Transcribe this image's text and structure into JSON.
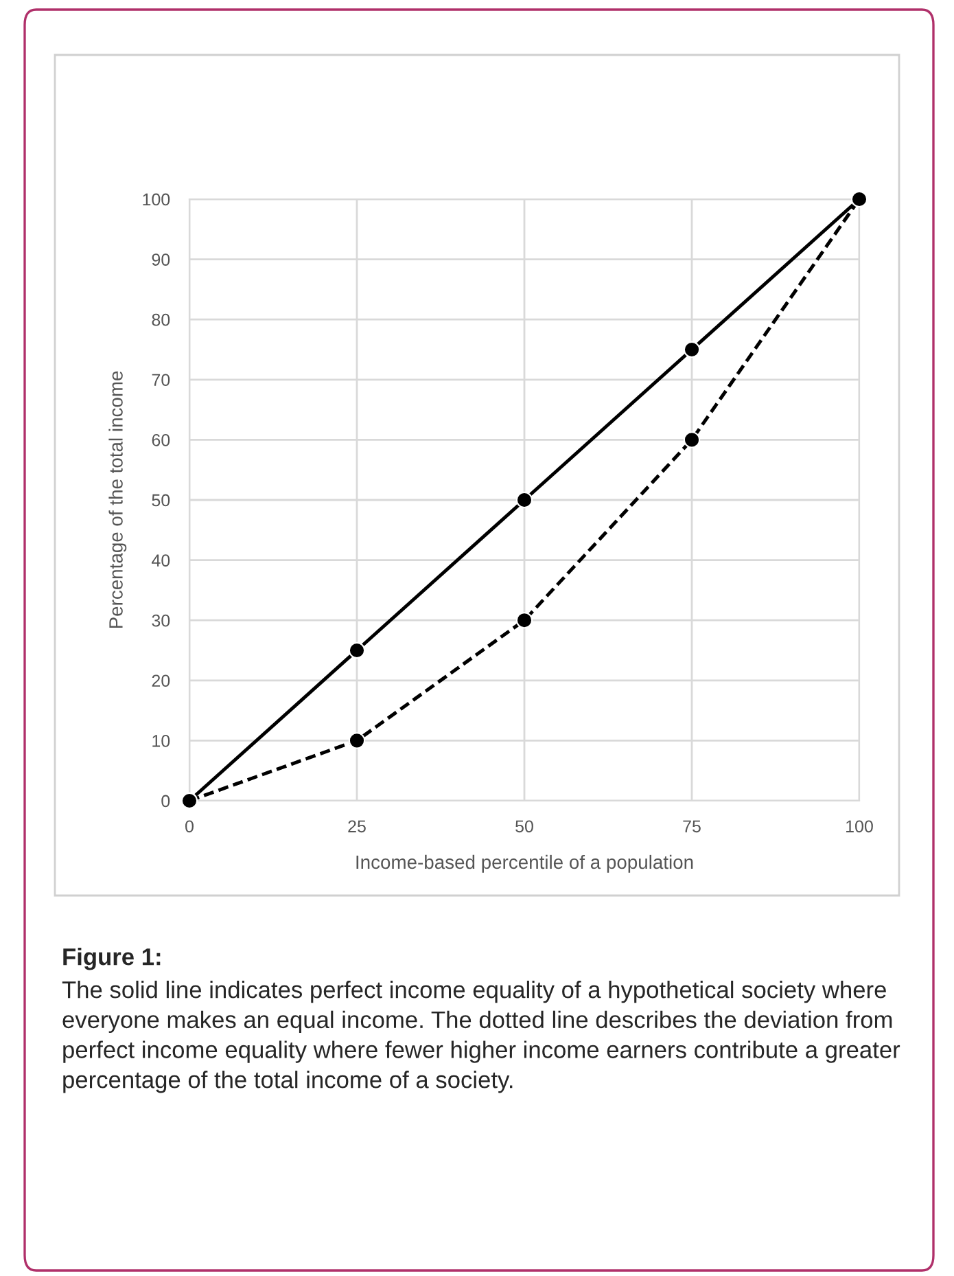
{
  "chart_data": {
    "type": "line",
    "xlabel": "Income-based percentile of a population",
    "ylabel": "Percentage of the total income",
    "x": [
      0,
      25,
      50,
      75,
      100
    ],
    "series": [
      {
        "color": "#000000",
        "values": [
          0,
          25,
          50,
          75,
          100
        ],
        "line_style": "solid"
      },
      {
        "color": "#000000",
        "values": [
          0,
          10,
          30,
          60,
          100
        ],
        "line_style": "dashed"
      }
    ],
    "xlim": [
      0,
      100
    ],
    "xticks": [
      0,
      25,
      50,
      75,
      100
    ],
    "ylim": [
      0,
      100
    ],
    "yticks": [
      0,
      10,
      20,
      30,
      40,
      50,
      60,
      70,
      80,
      90,
      100
    ],
    "grid": true,
    "marker": "circle",
    "legend": false,
    "annotations": [
      "Figure 1:",
      "The solid line indicates perfect income equality of a hypothetical society where everyone makes an equal income. The dotted line describes the deviation from perfect income equality where fewer higher income earners contribute a greater percentage of the total income of a society."
    ]
  }
}
